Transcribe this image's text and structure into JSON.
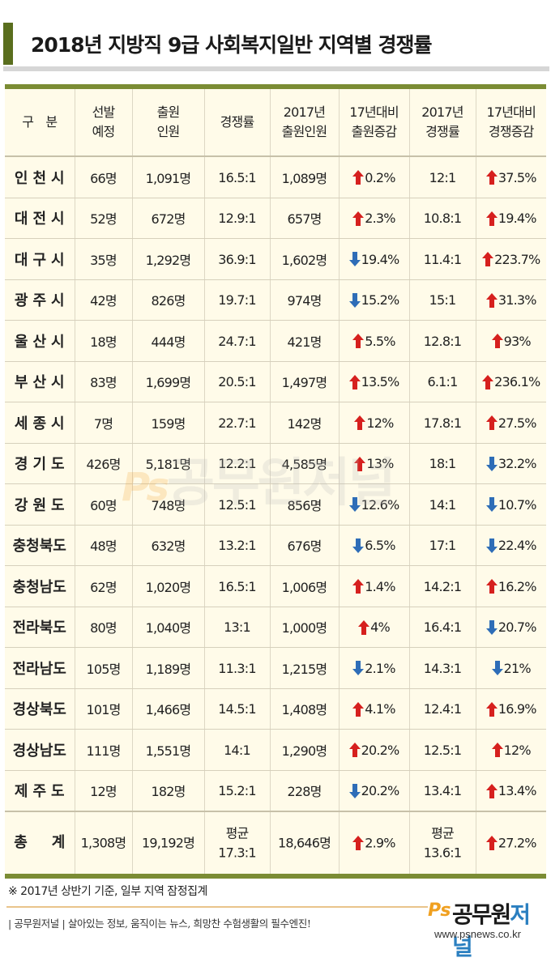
{
  "title": "2018년 지방직 9급 사회복지일반 지역별 경쟁률",
  "colors": {
    "title_accent": "#5a6e1e",
    "table_rule": "#7b8c34",
    "table_bg": "#fffbe9",
    "up": "#d6201e",
    "down": "#2e6db7"
  },
  "headers": [
    [
      "구　분"
    ],
    [
      "선발",
      "예정"
    ],
    [
      "출원",
      "인원"
    ],
    [
      "경쟁률"
    ],
    [
      "2017년",
      "출원인원"
    ],
    [
      "17년대비",
      "출원증감"
    ],
    [
      "2017년",
      "경쟁률"
    ],
    [
      "17년대비",
      "경쟁증감"
    ]
  ],
  "rows": [
    {
      "region": "인천시",
      "quota": "66명",
      "applicants": "1,091명",
      "ratio": "16.5:1",
      "prev_applicants": "1,089명",
      "app_dir": "up",
      "app_change": "0.2%",
      "prev_ratio": "12:1",
      "ratio_dir": "up",
      "ratio_change": "37.5%"
    },
    {
      "region": "대전시",
      "quota": "52명",
      "applicants": "672명",
      "ratio": "12.9:1",
      "prev_applicants": "657명",
      "app_dir": "up",
      "app_change": "2.3%",
      "prev_ratio": "10.8:1",
      "ratio_dir": "up",
      "ratio_change": "19.4%"
    },
    {
      "region": "대구시",
      "quota": "35명",
      "applicants": "1,292명",
      "ratio": "36.9:1",
      "prev_applicants": "1,602명",
      "app_dir": "down",
      "app_change": "19.4%",
      "prev_ratio": "11.4:1",
      "ratio_dir": "up",
      "ratio_change": "223.7%"
    },
    {
      "region": "광주시",
      "quota": "42명",
      "applicants": "826명",
      "ratio": "19.7:1",
      "prev_applicants": "974명",
      "app_dir": "down",
      "app_change": "15.2%",
      "prev_ratio": "15:1",
      "ratio_dir": "up",
      "ratio_change": "31.3%"
    },
    {
      "region": "울산시",
      "quota": "18명",
      "applicants": "444명",
      "ratio": "24.7:1",
      "prev_applicants": "421명",
      "app_dir": "up",
      "app_change": "5.5%",
      "prev_ratio": "12.8:1",
      "ratio_dir": "up",
      "ratio_change": "93%"
    },
    {
      "region": "부산시",
      "quota": "83명",
      "applicants": "1,699명",
      "ratio": "20.5:1",
      "prev_applicants": "1,497명",
      "app_dir": "up",
      "app_change": "13.5%",
      "prev_ratio": "6.1:1",
      "ratio_dir": "up",
      "ratio_change": "236.1%"
    },
    {
      "region": "세종시",
      "quota": "7명",
      "applicants": "159명",
      "ratio": "22.7:1",
      "prev_applicants": "142명",
      "app_dir": "up",
      "app_change": "12%",
      "prev_ratio": "17.8:1",
      "ratio_dir": "up",
      "ratio_change": "27.5%"
    },
    {
      "region": "경기도",
      "quota": "426명",
      "applicants": "5,181명",
      "ratio": "12.2:1",
      "prev_applicants": "4,585명",
      "app_dir": "up",
      "app_change": "13%",
      "prev_ratio": "18:1",
      "ratio_dir": "down",
      "ratio_change": "32.2%"
    },
    {
      "region": "강원도",
      "quota": "60명",
      "applicants": "748명",
      "ratio": "12.5:1",
      "prev_applicants": "856명",
      "app_dir": "down",
      "app_change": "12.6%",
      "prev_ratio": "14:1",
      "ratio_dir": "down",
      "ratio_change": "10.7%"
    },
    {
      "region": "충청북도",
      "quota": "48명",
      "applicants": "632명",
      "ratio": "13.2:1",
      "prev_applicants": "676명",
      "app_dir": "down",
      "app_change": "6.5%",
      "prev_ratio": "17:1",
      "ratio_dir": "down",
      "ratio_change": "22.4%"
    },
    {
      "region": "충청남도",
      "quota": "62명",
      "applicants": "1,020명",
      "ratio": "16.5:1",
      "prev_applicants": "1,006명",
      "app_dir": "up",
      "app_change": "1.4%",
      "prev_ratio": "14.2:1",
      "ratio_dir": "up",
      "ratio_change": "16.2%"
    },
    {
      "region": "전라북도",
      "quota": "80명",
      "applicants": "1,040명",
      "ratio": "13:1",
      "prev_applicants": "1,000명",
      "app_dir": "up",
      "app_change": "4%",
      "prev_ratio": "16.4:1",
      "ratio_dir": "down",
      "ratio_change": "20.7%"
    },
    {
      "region": "전라남도",
      "quota": "105명",
      "applicants": "1,189명",
      "ratio": "11.3:1",
      "prev_applicants": "1,215명",
      "app_dir": "down",
      "app_change": "2.1%",
      "prev_ratio": "14.3:1",
      "ratio_dir": "down",
      "ratio_change": "21%"
    },
    {
      "region": "경상북도",
      "quota": "101명",
      "applicants": "1,466명",
      "ratio": "14.5:1",
      "prev_applicants": "1,408명",
      "app_dir": "up",
      "app_change": "4.1%",
      "prev_ratio": "12.4:1",
      "ratio_dir": "up",
      "ratio_change": "16.9%"
    },
    {
      "region": "경상남도",
      "quota": "111명",
      "applicants": "1,551명",
      "ratio": "14:1",
      "prev_applicants": "1,290명",
      "app_dir": "up",
      "app_change": "20.2%",
      "prev_ratio": "12.5:1",
      "ratio_dir": "up",
      "ratio_change": "12%"
    },
    {
      "region": "제주도",
      "quota": "12명",
      "applicants": "182명",
      "ratio": "15.2:1",
      "prev_applicants": "228명",
      "app_dir": "down",
      "app_change": "20.2%",
      "prev_ratio": "13.4:1",
      "ratio_dir": "up",
      "ratio_change": "13.4%"
    }
  ],
  "total": {
    "region": "총　계",
    "quota": "1,308명",
    "applicants": "19,192명",
    "ratio_label": "평균",
    "ratio": "17.3:1",
    "prev_applicants": "18,646명",
    "app_dir": "up",
    "app_change": "2.9%",
    "prev_ratio_label": "평균",
    "prev_ratio": "13.6:1",
    "ratio_dir": "up",
    "ratio_change": "27.2%"
  },
  "note": "※ 2017년 상반기 기준, 일부 지역 잠정집계",
  "footer": "| 공무원저널 | 살아있는 정보, 움직이는 뉴스, 희망찬 수험생활의 필수엔진!",
  "logo": {
    "ps": "Ps",
    "name_a": "공무원",
    "name_b": "저널",
    "url": "www.psnews.co.kr"
  },
  "watermark": {
    "ps": "Ps",
    "text": "공무원저널"
  }
}
